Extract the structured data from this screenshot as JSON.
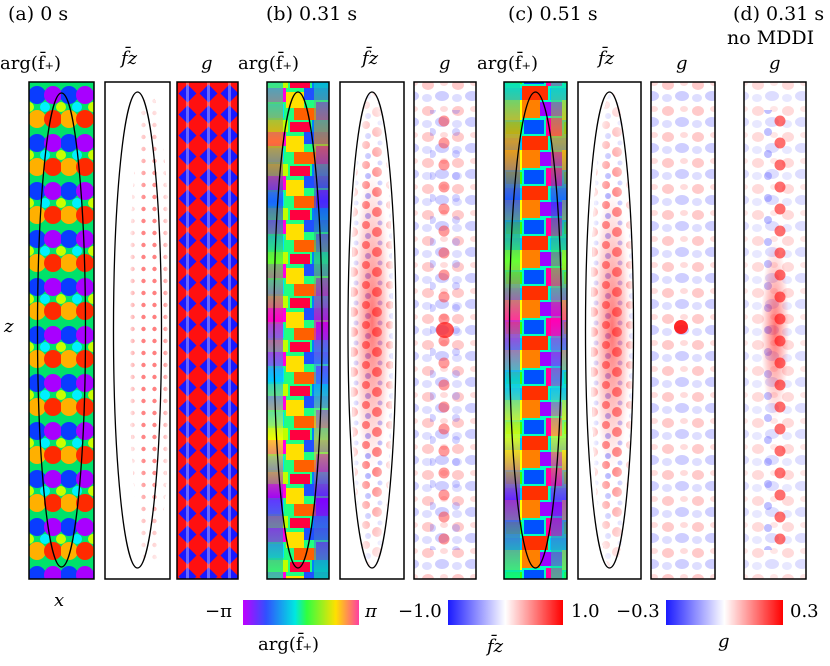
{
  "figure": {
    "columns": [
      {
        "id": "a",
        "title": "(a) 0 s",
        "extra": ""
      },
      {
        "id": "b",
        "title": "(b) 0.31 s",
        "extra": ""
      },
      {
        "id": "c",
        "title": "(c) 0.51 s",
        "extra": ""
      },
      {
        "id": "d",
        "title": "(d) 0.31 s",
        "extra": "no MDDI"
      }
    ],
    "panel_labels": {
      "phase": "arg(f̄₊)",
      "fz": "f̄z",
      "g": "g"
    },
    "axes": {
      "x": "x",
      "z": "z"
    },
    "colorbars": [
      {
        "name": "phase",
        "min_label": "−π",
        "max_label": "π",
        "label": "arg(f̄₊)",
        "min": -3.14159,
        "max": 3.14159
      },
      {
        "name": "fz",
        "min_label": "−1.0",
        "max_label": "1.0",
        "label": "f̄z",
        "min": -1.0,
        "max": 1.0
      },
      {
        "name": "g",
        "min_label": "−0.3",
        "max_label": "0.3",
        "label": "g",
        "min": -0.3,
        "max": 0.3
      }
    ],
    "colors": {
      "positive": "#ff0000",
      "negative": "#1a1aff",
      "frame": "#000000"
    }
  }
}
